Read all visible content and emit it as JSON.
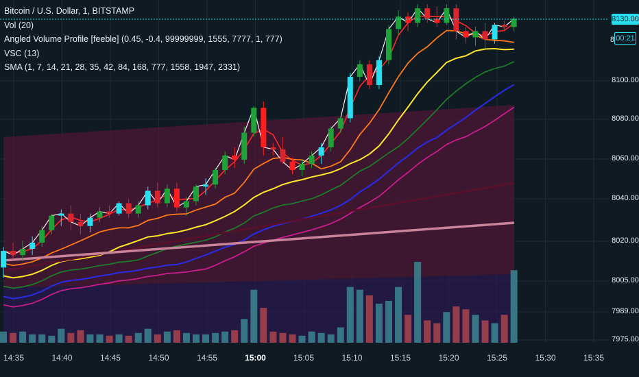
{
  "legend": {
    "title": "Bitcoin / U.S. Dollar, 1, BITSTAMP",
    "vol": "Vol (20)",
    "avp": "Angled Volume Profile [feeble] (0.45, -0.4, 99999999, 1555, 7777, 1, 777)",
    "vsc": "VSC (13)",
    "sma": "SMA (1, 7, 14, 21, 28, 35, 42, 84, 168, 777, 1558, 1947, 2331)"
  },
  "price_axis": {
    "current": "8130.00",
    "countdown": "00:21",
    "partial_label": "8",
    "ticks": [
      "8100.00",
      "8080.00",
      "8060.00",
      "8040.00",
      "8020.00",
      "8005.00",
      "7989.00",
      "7975.00"
    ]
  },
  "colors": {
    "up": "#1fa23a",
    "down": "#d9252e",
    "up_alt": "#29e0f0",
    "down_alt": "#ff1e1e",
    "background": "#0f1a23"
  },
  "chart_data": {
    "type": "candlestick",
    "x_label": "",
    "y_label": "",
    "time_ticks": [
      "14:35",
      "14:40",
      "14:45",
      "14:50",
      "14:55",
      "15:00",
      "15:05",
      "15:10",
      "15:15",
      "15:20",
      "15:25",
      "15:30",
      "15:35"
    ],
    "ylim": [
      7972,
      8137
    ],
    "current_price": 8130,
    "candles": [
      {
        "t": "14:34",
        "o": 8010,
        "h": 8020,
        "l": 8005,
        "c": 8018
      },
      {
        "t": "14:35",
        "o": 8018,
        "h": 8022,
        "l": 8014,
        "c": 8016
      },
      {
        "t": "14:36",
        "o": 8016,
        "h": 8023,
        "l": 8013,
        "c": 8019
      },
      {
        "t": "14:37",
        "o": 8019,
        "h": 8025,
        "l": 8016,
        "c": 8022
      },
      {
        "t": "14:38",
        "o": 8022,
        "h": 8030,
        "l": 8020,
        "c": 8028
      },
      {
        "t": "14:39",
        "o": 8028,
        "h": 8036,
        "l": 8026,
        "c": 8035
      },
      {
        "t": "14:40",
        "o": 8035,
        "h": 8038,
        "l": 8030,
        "c": 8036
      },
      {
        "t": "14:41",
        "o": 8036,
        "h": 8040,
        "l": 8028,
        "c": 8032
      },
      {
        "t": "14:42",
        "o": 8032,
        "h": 8036,
        "l": 8026,
        "c": 8030
      },
      {
        "t": "14:43",
        "o": 8030,
        "h": 8036,
        "l": 8027,
        "c": 8034
      },
      {
        "t": "14:44",
        "o": 8034,
        "h": 8039,
        "l": 8032,
        "c": 8037
      },
      {
        "t": "14:45",
        "o": 8037,
        "h": 8040,
        "l": 8034,
        "c": 8036
      },
      {
        "t": "14:46",
        "o": 8036,
        "h": 8042,
        "l": 8035,
        "c": 8041
      },
      {
        "t": "14:47",
        "o": 8041,
        "h": 8043,
        "l": 8034,
        "c": 8036
      },
      {
        "t": "14:48",
        "o": 8036,
        "h": 8042,
        "l": 8034,
        "c": 8040
      },
      {
        "t": "14:49",
        "o": 8040,
        "h": 8049,
        "l": 8038,
        "c": 8047
      },
      {
        "t": "14:50",
        "o": 8047,
        "h": 8051,
        "l": 8039,
        "c": 8041
      },
      {
        "t": "14:51",
        "o": 8041,
        "h": 8050,
        "l": 8039,
        "c": 8048
      },
      {
        "t": "14:52",
        "o": 8048,
        "h": 8051,
        "l": 8037,
        "c": 8039
      },
      {
        "t": "14:53",
        "o": 8039,
        "h": 8044,
        "l": 8035,
        "c": 8042
      },
      {
        "t": "14:54",
        "o": 8042,
        "h": 8050,
        "l": 8040,
        "c": 8049
      },
      {
        "t": "14:55",
        "o": 8049,
        "h": 8053,
        "l": 8045,
        "c": 8050
      },
      {
        "t": "14:56",
        "o": 8050,
        "h": 8058,
        "l": 8048,
        "c": 8057
      },
      {
        "t": "14:57",
        "o": 8057,
        "h": 8066,
        "l": 8055,
        "c": 8064
      },
      {
        "t": "14:58",
        "o": 8064,
        "h": 8068,
        "l": 8058,
        "c": 8062
      },
      {
        "t": "14:59",
        "o": 8062,
        "h": 8078,
        "l": 8060,
        "c": 8075
      },
      {
        "t": "15:00",
        "o": 8075,
        "h": 8088,
        "l": 8073,
        "c": 8087
      },
      {
        "t": "15:01",
        "o": 8087,
        "h": 8090,
        "l": 8064,
        "c": 8068
      },
      {
        "t": "15:02",
        "o": 8068,
        "h": 8070,
        "l": 8064,
        "c": 8067
      },
      {
        "t": "15:03",
        "o": 8067,
        "h": 8073,
        "l": 8060,
        "c": 8061
      },
      {
        "t": "15:04",
        "o": 8061,
        "h": 8063,
        "l": 8055,
        "c": 8057
      },
      {
        "t": "15:05",
        "o": 8057,
        "h": 8062,
        "l": 8054,
        "c": 8060
      },
      {
        "t": "15:06",
        "o": 8060,
        "h": 8066,
        "l": 8058,
        "c": 8064
      },
      {
        "t": "15:07",
        "o": 8064,
        "h": 8070,
        "l": 8060,
        "c": 8068
      },
      {
        "t": "15:08",
        "o": 8068,
        "h": 8078,
        "l": 8066,
        "c": 8077
      },
      {
        "t": "15:09",
        "o": 8077,
        "h": 8083,
        "l": 8075,
        "c": 8082
      },
      {
        "t": "15:10",
        "o": 8082,
        "h": 8104,
        "l": 8080,
        "c": 8102
      },
      {
        "t": "15:11",
        "o": 8102,
        "h": 8110,
        "l": 8100,
        "c": 8108
      },
      {
        "t": "15:12",
        "o": 8108,
        "h": 8110,
        "l": 8096,
        "c": 8098
      },
      {
        "t": "15:13",
        "o": 8098,
        "h": 8112,
        "l": 8096,
        "c": 8110
      },
      {
        "t": "15:14",
        "o": 8110,
        "h": 8127,
        "l": 8108,
        "c": 8125
      },
      {
        "t": "15:15",
        "o": 8125,
        "h": 8134,
        "l": 8122,
        "c": 8131
      },
      {
        "t": "15:16",
        "o": 8131,
        "h": 8133,
        "l": 8124,
        "c": 8128
      },
      {
        "t": "15:17",
        "o": 8128,
        "h": 8137,
        "l": 8126,
        "c": 8135
      },
      {
        "t": "15:18",
        "o": 8135,
        "h": 8137,
        "l": 8128,
        "c": 8130
      },
      {
        "t": "15:19",
        "o": 8130,
        "h": 8136,
        "l": 8126,
        "c": 8128
      },
      {
        "t": "15:20",
        "o": 8128,
        "h": 8137,
        "l": 8127,
        "c": 8135
      },
      {
        "t": "15:21",
        "o": 8135,
        "h": 8137,
        "l": 8120,
        "c": 8124
      },
      {
        "t": "15:22",
        "o": 8124,
        "h": 8126,
        "l": 8118,
        "c": 8121
      },
      {
        "t": "15:23",
        "o": 8121,
        "h": 8126,
        "l": 8117,
        "c": 8124
      },
      {
        "t": "15:24",
        "o": 8124,
        "h": 8128,
        "l": 8116,
        "c": 8120
      },
      {
        "t": "15:25",
        "o": 8120,
        "h": 8128,
        "l": 8118,
        "c": 8127
      },
      {
        "t": "15:26",
        "o": 8127,
        "h": 8129,
        "l": 8124,
        "c": 8126
      },
      {
        "t": "15:27",
        "o": 8126,
        "h": 8131,
        "l": 8124,
        "c": 8130
      }
    ],
    "volume": [
      8,
      7,
      8,
      6,
      6,
      5,
      10,
      7,
      9,
      6,
      6,
      5,
      6,
      5,
      7,
      10,
      6,
      8,
      9,
      7,
      6,
      6,
      7,
      8,
      9,
      17,
      38,
      25,
      8,
      7,
      6,
      5,
      8,
      7,
      6,
      11,
      40,
      38,
      34,
      28,
      30,
      40,
      20,
      58,
      16,
      14,
      22,
      26,
      24,
      20,
      16,
      14,
      20,
      52
    ]
  }
}
